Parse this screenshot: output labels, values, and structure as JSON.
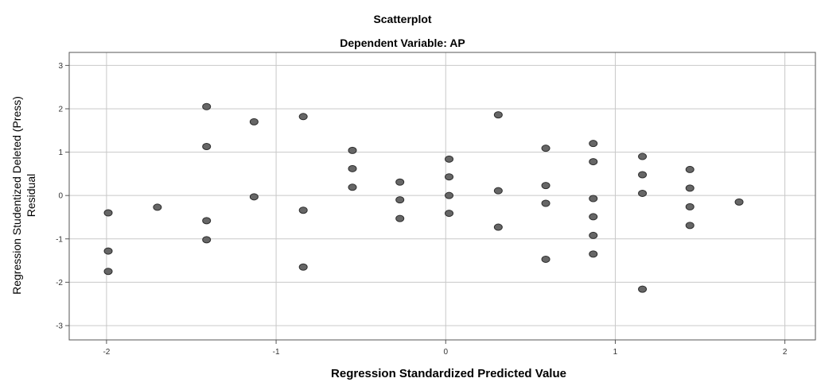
{
  "chart_data": {
    "type": "scatter",
    "title": "Scatterplot",
    "subtitle": "Dependent Variable: AP",
    "xlabel": "Regression Standardized Predicted Value",
    "ylabel_lines": [
      "Regression Studentized Deleted (Press)",
      "Residual"
    ],
    "xlim": [
      -2.22,
      2.18
    ],
    "ylim": [
      -3.33,
      3.3
    ],
    "x_ticks": [
      -2,
      -1,
      0,
      1,
      2
    ],
    "y_ticks": [
      -3,
      -2,
      -1,
      0,
      1,
      2,
      3
    ],
    "grid": true,
    "point_color": "#666666",
    "points": [
      [
        -1.99,
        -0.4
      ],
      [
        -1.99,
        -1.28
      ],
      [
        -1.99,
        -1.75
      ],
      [
        -1.7,
        -0.27
      ],
      [
        -1.41,
        2.05
      ],
      [
        -1.41,
        1.13
      ],
      [
        -1.41,
        -0.58
      ],
      [
        -1.41,
        -1.02
      ],
      [
        -1.13,
        1.7
      ],
      [
        -1.13,
        -0.03
      ],
      [
        -0.84,
        1.82
      ],
      [
        -0.84,
        -0.34
      ],
      [
        -0.84,
        -1.65
      ],
      [
        -0.55,
        1.04
      ],
      [
        -0.55,
        0.62
      ],
      [
        -0.55,
        0.19
      ],
      [
        -0.27,
        0.31
      ],
      [
        -0.27,
        -0.1
      ],
      [
        -0.27,
        -0.53
      ],
      [
        0.02,
        0.84
      ],
      [
        0.02,
        0.43
      ],
      [
        0.02,
        0.0
      ],
      [
        0.02,
        -0.41
      ],
      [
        0.31,
        1.86
      ],
      [
        0.31,
        0.11
      ],
      [
        0.31,
        -0.73
      ],
      [
        0.59,
        1.09
      ],
      [
        0.59,
        0.23
      ],
      [
        0.59,
        -0.18
      ],
      [
        0.59,
        -1.47
      ],
      [
        0.87,
        1.2
      ],
      [
        0.87,
        0.78
      ],
      [
        0.87,
        -0.07
      ],
      [
        0.87,
        -0.49
      ],
      [
        0.87,
        -0.92
      ],
      [
        0.87,
        -1.35
      ],
      [
        1.16,
        0.9
      ],
      [
        1.16,
        0.48
      ],
      [
        1.16,
        0.05
      ],
      [
        1.16,
        -2.16
      ],
      [
        1.44,
        0.6
      ],
      [
        1.44,
        0.17
      ],
      [
        1.44,
        -0.26
      ],
      [
        1.44,
        -0.69
      ],
      [
        1.73,
        -0.15
      ]
    ]
  }
}
